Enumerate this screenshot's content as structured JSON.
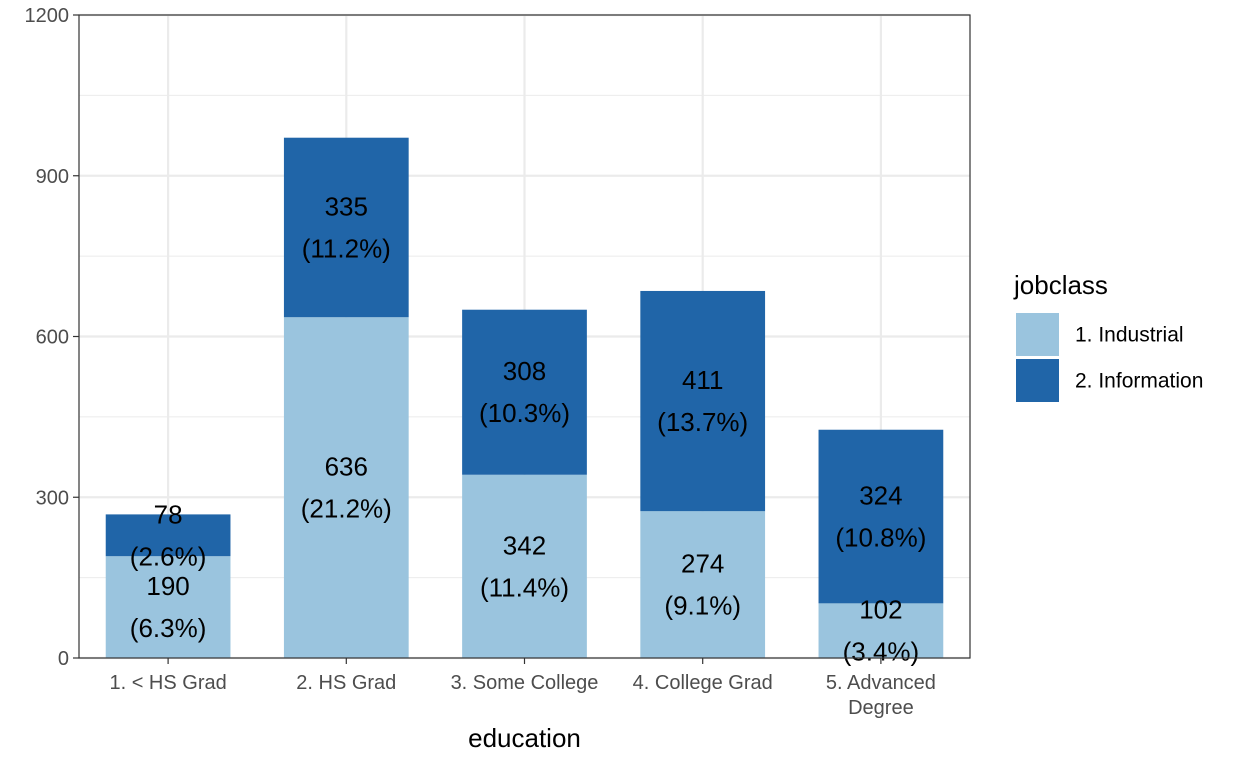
{
  "chart_data": {
    "type": "bar",
    "stacked": true,
    "categories": [
      "1. < HS Grad",
      "2. HS Grad",
      "3. Some College",
      "4. College Grad",
      "5. Advanced Degree"
    ],
    "series": [
      {
        "name": "1. Industrial",
        "color": "#9ac4de",
        "values": [
          190,
          636,
          342,
          274,
          102
        ],
        "labels": [
          "(6.3%)",
          "(21.2%)",
          "(11.4%)",
          "(9.1%)",
          "(3.4%)"
        ]
      },
      {
        "name": "2. Information",
        "color": "#2065a8",
        "values": [
          78,
          335,
          308,
          411,
          324
        ],
        "labels": [
          "(2.6%)",
          "(11.2%)",
          "(10.3%)",
          "(13.7%)",
          "(10.8%)"
        ]
      }
    ],
    "xlabel": "education",
    "ylabel": "",
    "ylim": [
      0,
      1200
    ],
    "yticks": [
      0,
      300,
      600,
      900,
      1200
    ],
    "grid": true,
    "legend": {
      "title": "jobclass",
      "position": "right"
    }
  }
}
